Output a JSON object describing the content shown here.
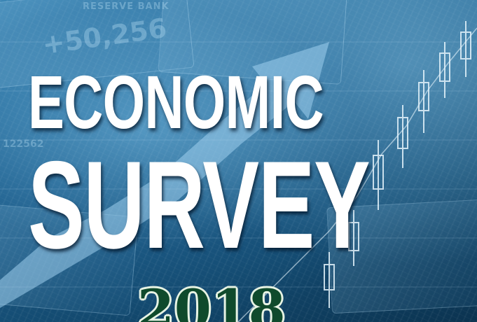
{
  "poster": {
    "headline_line1": "ECONOMIC",
    "headline_line2": "SURVEY",
    "year": "2018"
  },
  "background_text": {
    "note_header": "RESERVE BANK",
    "ticker_value": "+50,256",
    "serial": "122562"
  },
  "colors": {
    "background_dark": "#0d3d5c",
    "background_mid": "#1f5f8c",
    "background_light": "#3e89b8",
    "headline_text": "#ffffff",
    "year_fill": "#0f4a2c",
    "year_outline": "#e7f3e4",
    "chart_overlay": "#c8e6f7"
  },
  "icons": {
    "trend_arrow": "rising-arrow-icon",
    "candlesticks": "candlestick-chart-icon"
  }
}
